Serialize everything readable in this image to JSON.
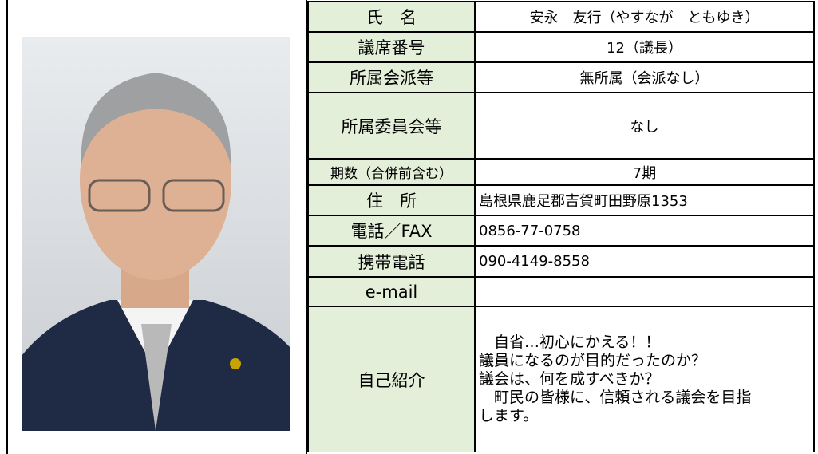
{
  "profile": {
    "rows": [
      {
        "label": "氏　名",
        "value": "安永　友行（やすなが　ともゆき）"
      },
      {
        "label": "議席番号",
        "value": "12（議長）"
      },
      {
        "label": "所属会派等",
        "value": "無所属（会派なし）"
      },
      {
        "label": "所属委員会等",
        "value": "なし"
      },
      {
        "label": "期数（合併前含む）",
        "value": "7期"
      },
      {
        "label": "住　所",
        "value": "島根県鹿足郡吉賀町田野原1353"
      },
      {
        "label": "電話／FAX",
        "value": "0856-77-0758"
      },
      {
        "label": "携帯電話",
        "value": "090-4149-8558"
      },
      {
        "label": "e-mail",
        "value": ""
      }
    ],
    "intro": {
      "label": "自己紹介",
      "lines": [
        "　自省…初心にかえる！！",
        "議員になるのが目的だったのか？",
        "議会は、何を成すべきか？",
        "　町民の皆様に、信頼される議会を目指",
        "します。"
      ]
    }
  }
}
